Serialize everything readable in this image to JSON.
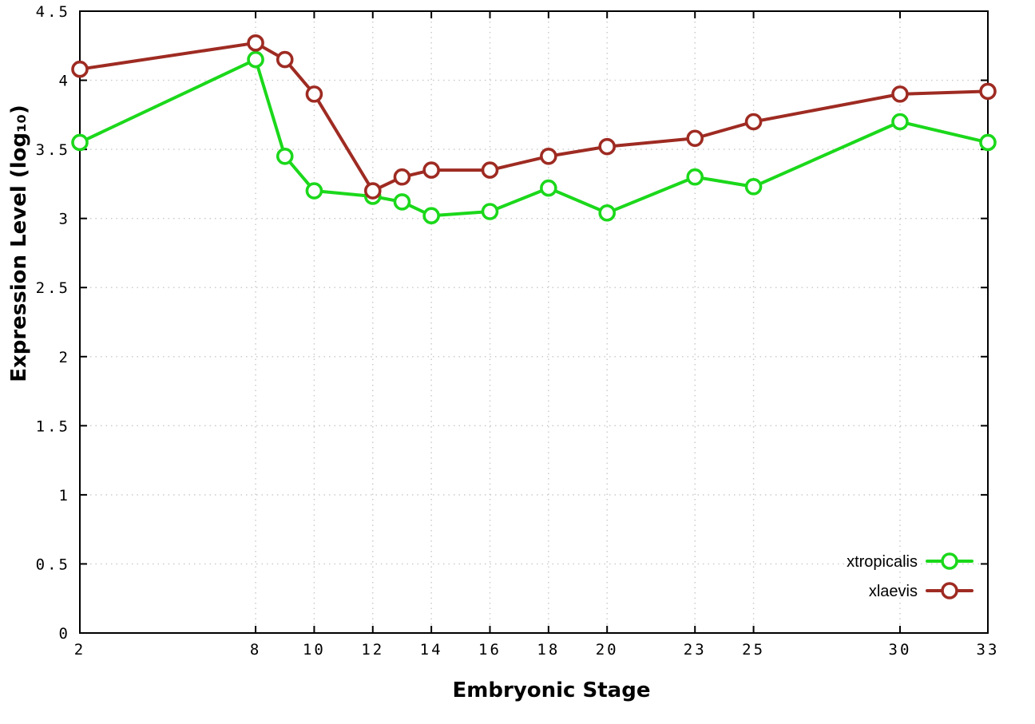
{
  "chart_data": {
    "type": "line",
    "title": "",
    "xlabel": "Embryonic Stage",
    "ylabel": "Expression Level (log₁₀)",
    "xlim": [
      2,
      33
    ],
    "ylim": [
      0,
      4.5
    ],
    "x_ticks": [
      2,
      8,
      10,
      12,
      14,
      16,
      18,
      20,
      23,
      25,
      30,
      33
    ],
    "x_tick_labels": [
      "2",
      "8",
      "10",
      "12",
      "14",
      "16",
      "18",
      "20",
      "23",
      "25",
      "30",
      "33"
    ],
    "y_ticks": [
      0,
      0.5,
      1,
      1.5,
      2,
      2.5,
      3,
      3.5,
      4,
      4.5
    ],
    "y_tick_labels": [
      "0",
      "0.5",
      "1",
      "1.5",
      "2",
      "2.5",
      "3",
      "3.5",
      "4",
      "4.5"
    ],
    "grid": true,
    "legend_position": "bottom-right",
    "x": [
      2,
      8,
      9,
      10,
      12,
      13,
      14,
      16,
      18,
      20,
      23,
      25,
      30,
      33
    ],
    "series": [
      {
        "name": "xtropicalis",
        "color": "#1bd81b",
        "values": [
          3.55,
          4.15,
          3.45,
          3.2,
          3.16,
          3.12,
          3.02,
          3.05,
          3.22,
          3.04,
          3.3,
          3.23,
          3.7,
          3.55
        ]
      },
      {
        "name": "xlaevis",
        "color": "#9e2b22",
        "values": [
          4.08,
          4.27,
          4.15,
          3.9,
          3.2,
          3.3,
          3.35,
          3.35,
          3.45,
          3.52,
          3.58,
          3.7,
          3.9,
          3.92
        ]
      }
    ],
    "style": {
      "grid_color": "#c8c8c8",
      "border_color": "#000000",
      "marker_fill": "#ffffff",
      "line_width": 4,
      "marker_radius": 9
    }
  }
}
